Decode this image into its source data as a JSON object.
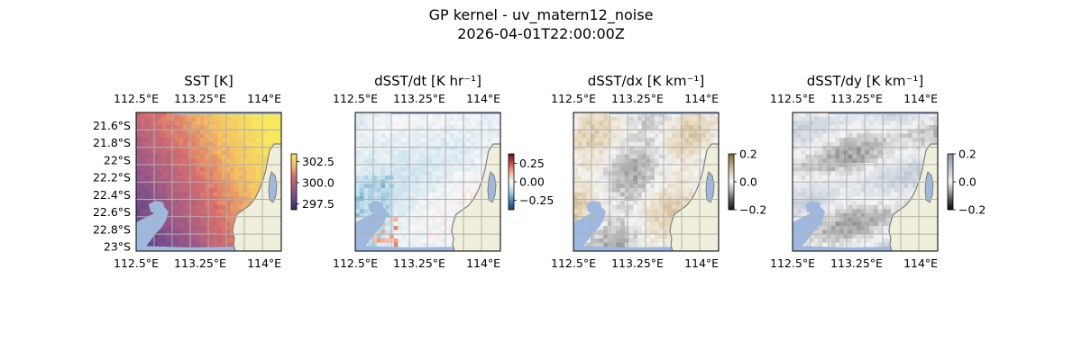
{
  "figure": {
    "title_line1": "GP kernel - uv_matern12_noise",
    "title_line2": "2026-04-01T22:00:00Z"
  },
  "colors": {
    "land": "#efefdb",
    "ocean_mask": "#9fb8e0",
    "coast": "#808080",
    "grid": "#b0b0b0"
  },
  "chart_data": [
    {
      "type": "heatmap",
      "title": "SST [K]",
      "colormap": "plasma-muted",
      "x_ticks": [
        "112.5°E",
        "113.25°E",
        "114°E"
      ],
      "x_tick_values": [
        112.5,
        113.25,
        114.0
      ],
      "y_ticks": [
        "21.6°S",
        "21.8°S",
        "22°S",
        "22.2°S",
        "22.4°S",
        "22.6°S",
        "22.8°S",
        "23°S"
      ],
      "y_tick_values": [
        -21.6,
        -21.8,
        -22.0,
        -22.2,
        -22.4,
        -22.6,
        -22.8,
        -23.0
      ],
      "xlim": [
        112.5,
        114.2
      ],
      "ylim": [
        -23.05,
        -21.45
      ],
      "grid": true,
      "colorbar": {
        "ticks": [
          "302.5",
          "300.0",
          "297.5"
        ],
        "tick_values": [
          302.5,
          300.0,
          297.5
        ],
        "range": [
          296.8,
          303.4
        ]
      }
    },
    {
      "type": "heatmap",
      "title": "dSST/dt [K hr⁻¹]",
      "colormap": "RdBu_r",
      "x_ticks": [
        "112.5°E",
        "113.25°E",
        "114°E"
      ],
      "x_tick_values": [
        112.5,
        113.25,
        114.0
      ],
      "xlim": [
        112.5,
        114.2
      ],
      "ylim": [
        -23.05,
        -21.45
      ],
      "grid": true,
      "colorbar": {
        "ticks": [
          "0.25",
          "0.00",
          "−0.25"
        ],
        "tick_values": [
          0.25,
          0.0,
          -0.25
        ],
        "range": [
          -0.38,
          0.38
        ]
      }
    },
    {
      "type": "heatmap",
      "title": "dSST/dx [K km⁻¹]",
      "colormap": "BrBG-gray",
      "x_ticks": [
        "112.5°E",
        "113.25°E",
        "114°E"
      ],
      "x_tick_values": [
        112.5,
        113.25,
        114.0
      ],
      "xlim": [
        112.5,
        114.2
      ],
      "ylim": [
        -23.05,
        -21.45
      ],
      "grid": true,
      "colorbar": {
        "ticks": [
          "0.2",
          "0.0",
          "−0.2"
        ],
        "tick_values": [
          0.2,
          0.0,
          -0.2
        ],
        "range": [
          -0.2,
          0.2
        ]
      }
    },
    {
      "type": "heatmap",
      "title": "dSST/dy [K km⁻¹]",
      "colormap": "gray-blue",
      "x_ticks": [
        "112.5°E",
        "113.25°E",
        "114°E"
      ],
      "x_tick_values": [
        112.5,
        113.25,
        114.0
      ],
      "xlim": [
        112.5,
        114.2
      ],
      "ylim": [
        -23.05,
        -21.45
      ],
      "grid": true,
      "colorbar": {
        "ticks": [
          "0.2",
          "0.0",
          "−0.2"
        ],
        "tick_values": [
          0.2,
          0.0,
          -0.2
        ],
        "range": [
          -0.2,
          0.2
        ]
      }
    }
  ]
}
